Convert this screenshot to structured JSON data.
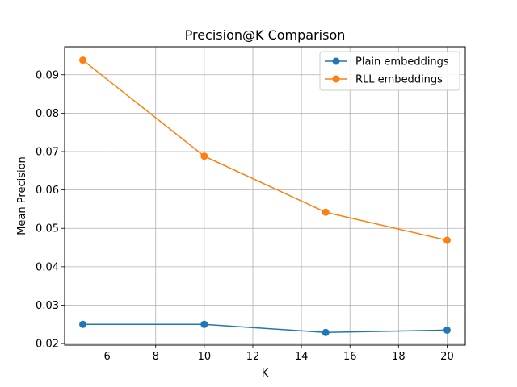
{
  "chart_data": {
    "type": "line",
    "title": "Precision@K Comparison",
    "xlabel": "K",
    "ylabel": "Mean Precision",
    "xlim": [
      4.25,
      20.75
    ],
    "ylim": [
      0.0196,
      0.0973
    ],
    "xticks": [
      6,
      8,
      10,
      12,
      14,
      16,
      18,
      20
    ],
    "yticks": [
      0.02,
      0.03,
      0.04,
      0.05,
      0.06,
      0.07,
      0.08,
      0.09
    ],
    "ytick_labels": [
      "0.02",
      "0.03",
      "0.04",
      "0.05",
      "0.06",
      "0.07",
      "0.08",
      "0.09"
    ],
    "grid": true,
    "legend_position": "top-right",
    "x": [
      5,
      10,
      15,
      20
    ],
    "series": [
      {
        "name": "Plain embeddings",
        "color": "#1f77b4",
        "values": [
          0.025,
          0.025,
          0.0229,
          0.0235
        ]
      },
      {
        "name": "RLL embeddings",
        "color": "#ff7f0e",
        "values": [
          0.0938,
          0.0688,
          0.0542,
          0.0469
        ]
      }
    ]
  }
}
